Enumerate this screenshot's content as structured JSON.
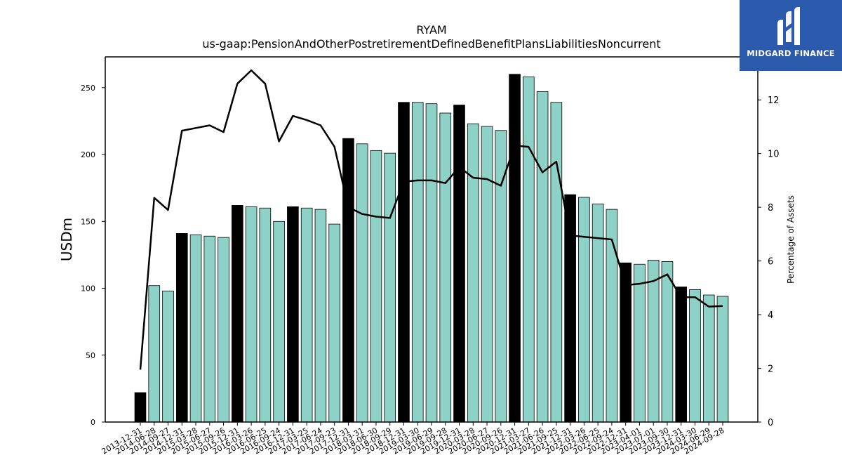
{
  "chart_data": {
    "type": "bar",
    "title": "RYAM",
    "subtitle": "us-gaap:PensionAndOtherPostretirementDefinedBenefitPlansLiabilitiesNoncurrent",
    "ylabel": "USDm",
    "ylabel_right": "Percentage of Assets",
    "ylim": [
      0,
      273
    ],
    "ylim_right": [
      0,
      13.6
    ],
    "yticks": [
      0,
      50,
      100,
      150,
      200,
      250
    ],
    "yticks_right": [
      0,
      2,
      4,
      6,
      8,
      10,
      12
    ],
    "grid": false,
    "categories": [
      "2013-12-31",
      "2014-06-28",
      "2014-09-27",
      "2014-12-31",
      "2015-03-28",
      "2015-06-27",
      "2015-09-26",
      "2015-12-31",
      "2016-03-26",
      "2016-06-25",
      "2016-09-24",
      "2016-12-31",
      "2017-03-25",
      "2017-06-24",
      "2017-09-23",
      "2017-12-31",
      "2018-03-31",
      "2018-06-30",
      "2018-09-29",
      "2018-12-31",
      "2019-03-30",
      "2019-06-29",
      "2019-09-28",
      "2019-12-31",
      "2020-03-28",
      "2020-06-27",
      "2020-09-26",
      "2020-12-31",
      "2021-03-27",
      "2021-06-26",
      "2021-09-25",
      "2021-12-31",
      "2022-03-26",
      "2022-06-25",
      "2022-09-24",
      "2022-12-31",
      "2023-04-01",
      "2023-07-01",
      "2023-09-30",
      "2023-12-31",
      "2024-03-30",
      "2024-06-29",
      "2024-09-28"
    ],
    "series": [
      {
        "kind": "bar",
        "values": [
          22,
          102,
          98,
          141,
          140,
          139,
          138,
          162,
          161,
          160,
          150,
          161,
          160,
          159,
          148,
          212,
          208,
          203,
          201,
          239,
          239,
          238,
          231,
          237,
          223,
          221,
          218,
          260,
          258,
          247,
          239,
          170,
          168,
          163,
          159,
          119,
          118,
          121,
          120,
          101,
          99,
          95,
          94
        ],
        "annual_flags": [
          true,
          false,
          false,
          true,
          false,
          false,
          false,
          true,
          false,
          false,
          false,
          true,
          false,
          false,
          false,
          true,
          false,
          false,
          false,
          true,
          false,
          false,
          false,
          true,
          false,
          false,
          false,
          true,
          false,
          false,
          false,
          true,
          false,
          false,
          false,
          true,
          false,
          false,
          false,
          true,
          false,
          false,
          false
        ]
      },
      {
        "kind": "line",
        "axis": "right",
        "values": [
          1.95,
          8.35,
          7.9,
          10.85,
          10.95,
          11.05,
          10.8,
          12.6,
          13.1,
          12.6,
          10.45,
          11.4,
          11.25,
          11.05,
          10.25,
          8.0,
          7.75,
          7.65,
          7.6,
          8.95,
          9.0,
          9.0,
          8.9,
          9.5,
          9.1,
          9.05,
          8.8,
          10.3,
          10.25,
          9.3,
          9.7,
          6.95,
          6.9,
          6.85,
          6.8,
          5.1,
          5.15,
          5.25,
          5.5,
          4.65,
          4.65,
          4.3,
          4.32
        ]
      }
    ],
    "colors": {
      "annual_bar": "#000000",
      "quarter_bar": "#8ed1c6",
      "line": "#000000"
    }
  },
  "logo": {
    "text": "MIDGARD FINANCE",
    "bg": "#2b5aad"
  }
}
